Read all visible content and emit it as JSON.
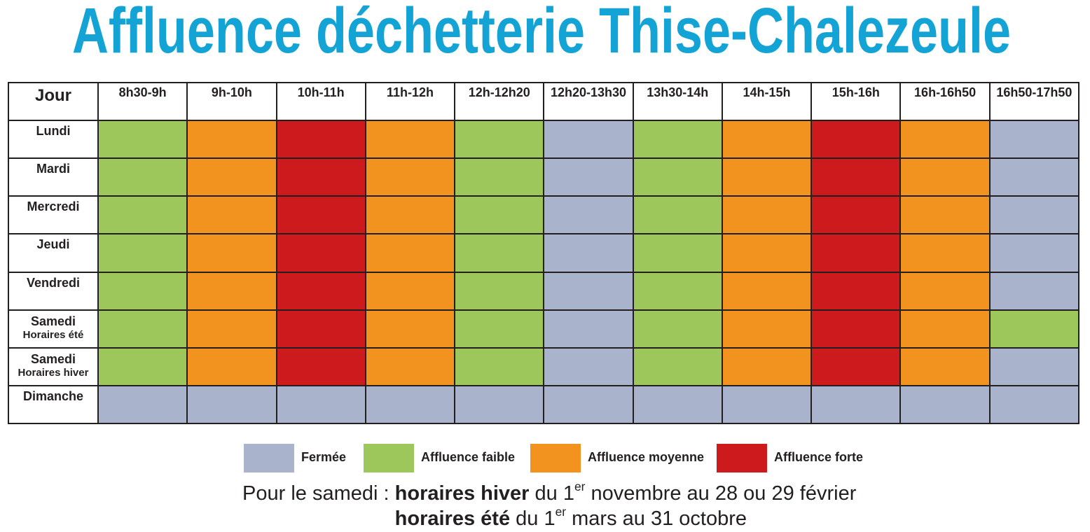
{
  "chart_data": {
    "type": "heatmap",
    "title": "Affluence déchetterie Thise-Chalezeule",
    "ylabel": "Jour",
    "x": [
      "8h30-9h",
      "9h-10h",
      "10h-11h",
      "11h-12h",
      "12h-12h20",
      "12h20-13h30",
      "13h30-14h",
      "14h-15h",
      "15h-16h",
      "16h-16h50",
      "16h50-17h50"
    ],
    "y": [
      {
        "label": "Lundi"
      },
      {
        "label": "Mardi"
      },
      {
        "label": "Mercredi"
      },
      {
        "label": "Jeudi"
      },
      {
        "label": "Vendredi"
      },
      {
        "label": "Samedi",
        "sublabel": "Horaires été"
      },
      {
        "label": "Samedi",
        "sublabel": "Horaires hiver"
      },
      {
        "label": "Dimanche"
      }
    ],
    "values": [
      [
        1,
        2,
        3,
        2,
        1,
        0,
        1,
        2,
        3,
        2,
        0
      ],
      [
        1,
        2,
        3,
        2,
        1,
        0,
        1,
        2,
        3,
        2,
        0
      ],
      [
        1,
        2,
        3,
        2,
        1,
        0,
        1,
        2,
        3,
        2,
        0
      ],
      [
        1,
        2,
        3,
        2,
        1,
        0,
        1,
        2,
        3,
        2,
        0
      ],
      [
        1,
        2,
        3,
        2,
        1,
        0,
        1,
        2,
        3,
        2,
        0
      ],
      [
        1,
        2,
        3,
        2,
        1,
        0,
        1,
        2,
        3,
        2,
        1
      ],
      [
        1,
        2,
        3,
        2,
        1,
        0,
        1,
        2,
        3,
        2,
        0
      ],
      [
        0,
        0,
        0,
        0,
        0,
        0,
        0,
        0,
        0,
        0,
        0
      ]
    ],
    "scale": [
      {
        "label": "Fermée",
        "color": "#a9b4cc"
      },
      {
        "label": "Affluence faible",
        "color": "#9dc75b"
      },
      {
        "label": "Affluence moyenne",
        "color": "#f3931f"
      },
      {
        "label": "Affluence forte",
        "color": "#cd1a1d"
      }
    ],
    "grid": true,
    "legend_position": "bottom"
  },
  "colors": {
    "title": "#14a3d5",
    "text": "#231f20",
    "grid_lines": "#231f20"
  },
  "notes": {
    "prefix": "Pour le samedi :",
    "winter": {
      "label": "horaires hiver",
      "pre": "du 1",
      "sup": "er",
      "post": "novembre au 28 ou 29 février"
    },
    "summer": {
      "label": "horaires été",
      "pre": "du 1",
      "sup": "er",
      "post": "mars au 31 octobre"
    }
  }
}
